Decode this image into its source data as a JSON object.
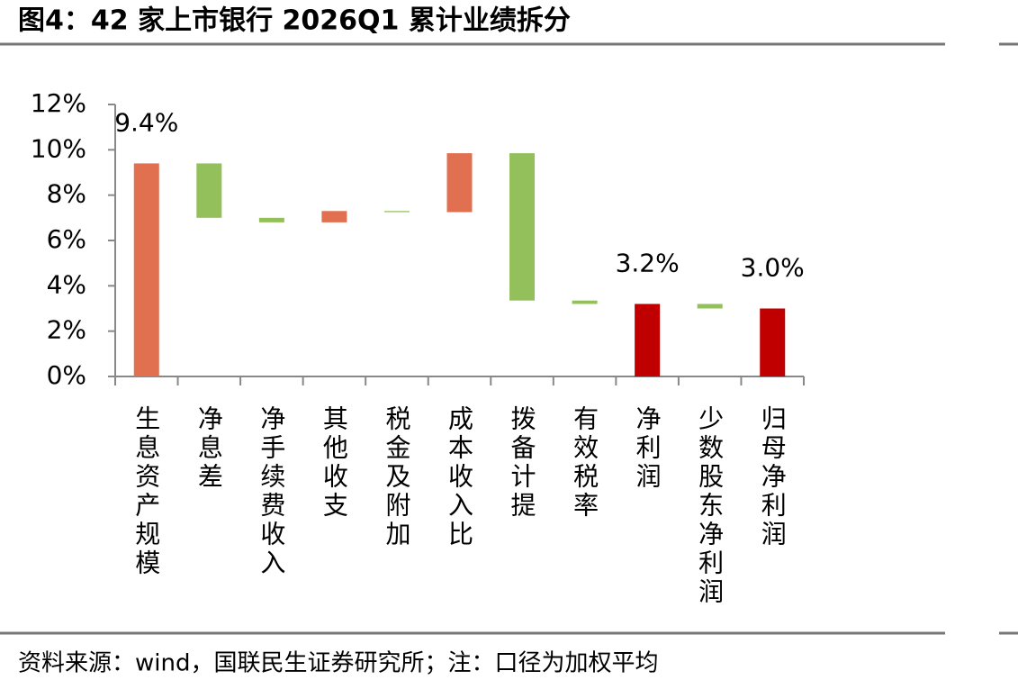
{
  "chart_data": {
    "type": "waterfall",
    "title": "图4：42 家上市银行 2026Q1 累计业绩拆分",
    "source": "资料来源：wind，国联民生证券研究所；注：口径为加权平均",
    "categories": [
      "生息资产规模",
      "净息差",
      "净手续费收入",
      "其他收支",
      "税金及附加",
      "成本收入比",
      "拨备计提",
      "有效税率",
      "净利润",
      "少数股东净利润",
      "归母净利润"
    ],
    "values": [
      9.4,
      -2.4,
      -0.2,
      0.5,
      -0.05,
      2.6,
      -6.5,
      -0.15,
      3.2,
      -0.2,
      3.0
    ],
    "value_labels": [
      "9.4%",
      null,
      null,
      null,
      null,
      null,
      null,
      null,
      "3.2%",
      null,
      "3.0%"
    ],
    "is_total": [
      false,
      false,
      false,
      false,
      false,
      false,
      false,
      false,
      true,
      false,
      true
    ],
    "colors": {
      "increase": "#e07050",
      "decrease": "#93c05a",
      "total": "#c00000"
    },
    "ylim": [
      0,
      12
    ],
    "yticks": [
      {
        "value": 0,
        "label": "0%"
      },
      {
        "value": 2,
        "label": "2%"
      },
      {
        "value": 4,
        "label": "4%"
      },
      {
        "value": 6,
        "label": "6%"
      },
      {
        "value": 8,
        "label": "8%"
      },
      {
        "value": 10,
        "label": "10%"
      },
      {
        "value": 12,
        "label": "12%"
      }
    ]
  }
}
